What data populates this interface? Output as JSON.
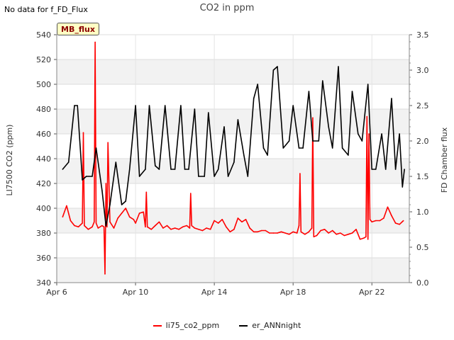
{
  "header": {
    "no_data": "No data for f_FD_Flux",
    "title": "CO2 in ppm"
  },
  "badge": {
    "label": "MB_flux"
  },
  "legend": [
    {
      "name": "li75_co2_ppm",
      "color": "#ff0000"
    },
    {
      "name": "er_ANNnight",
      "color": "#000000"
    }
  ],
  "chart_data": {
    "type": "line",
    "title": "CO2 in ppm",
    "xlabel": "",
    "ylabel": "LI7500 CO2 (ppm)",
    "y2label": "FD Chamber flux",
    "xlim": [
      6.0,
      23.9
    ],
    "ylim": [
      340,
      540
    ],
    "y2lim": [
      0.0,
      3.5
    ],
    "x_ticks": [
      {
        "value": 6,
        "label": "Apr 6"
      },
      {
        "value": 10,
        "label": "Apr 10"
      },
      {
        "value": 14,
        "label": "Apr 14"
      },
      {
        "value": 18,
        "label": "Apr 18"
      },
      {
        "value": 22,
        "label": "Apr 22"
      }
    ],
    "y_ticks": [
      340,
      360,
      380,
      400,
      420,
      440,
      460,
      480,
      500,
      520,
      540
    ],
    "y2_ticks": [
      "0.0",
      "0.5",
      "1.0",
      "1.5",
      "2.0",
      "2.5",
      "3.0",
      "3.5"
    ],
    "grid": true,
    "legend_position": "bottom",
    "series": [
      {
        "name": "li75_co2_ppm",
        "axis": "left",
        "color": "#ff0000",
        "x": [
          6.3,
          6.5,
          6.7,
          6.9,
          7.1,
          7.3,
          7.35,
          7.4,
          7.6,
          7.8,
          7.9,
          7.95,
          8.0,
          8.1,
          8.3,
          8.4,
          8.45,
          8.5,
          8.55,
          8.6,
          8.7,
          8.9,
          9.1,
          9.3,
          9.5,
          9.7,
          9.9,
          10.0,
          10.2,
          10.4,
          10.5,
          10.55,
          10.6,
          10.8,
          11.0,
          11.2,
          11.4,
          11.6,
          11.8,
          12.0,
          12.2,
          12.4,
          12.6,
          12.75,
          12.8,
          12.85,
          13.0,
          13.2,
          13.4,
          13.6,
          13.8,
          14.0,
          14.2,
          14.4,
          14.6,
          14.8,
          15.0,
          15.2,
          15.4,
          15.6,
          15.8,
          16.0,
          16.2,
          16.4,
          16.6,
          16.8,
          17.0,
          17.2,
          17.4,
          17.6,
          17.8,
          18.0,
          18.2,
          18.3,
          18.35,
          18.4,
          18.6,
          18.8,
          18.95,
          19.0,
          19.05,
          19.2,
          19.4,
          19.6,
          19.8,
          20.0,
          20.2,
          20.4,
          20.6,
          20.8,
          21.0,
          21.2,
          21.4,
          21.6,
          21.7,
          21.75,
          21.8,
          21.85,
          21.9,
          22.0,
          22.2,
          22.4,
          22.6,
          22.8,
          23.0,
          23.2,
          23.4,
          23.6
        ],
        "values": [
          393,
          402,
          390,
          386,
          385,
          388,
          461,
          386,
          383,
          385,
          389,
          534,
          388,
          384,
          386,
          385,
          347,
          420,
          385,
          453,
          389,
          384,
          392,
          396,
          400,
          393,
          391,
          388,
          396,
          397,
          385,
          413,
          385,
          383,
          386,
          389,
          384,
          386,
          383,
          384,
          383,
          385,
          386,
          384,
          412,
          386,
          384,
          383,
          382,
          384,
          383,
          390,
          388,
          391,
          385,
          381,
          383,
          392,
          389,
          391,
          384,
          381,
          381,
          382,
          382,
          380,
          380,
          380,
          381,
          380,
          379,
          381,
          380,
          386,
          428,
          381,
          379,
          381,
          384,
          473,
          377,
          378,
          382,
          383,
          380,
          382,
          379,
          380,
          378,
          379,
          380,
          383,
          375,
          376,
          377,
          474,
          375,
          460,
          391,
          389,
          390,
          390,
          392,
          401,
          394,
          388,
          387,
          390
        ]
      },
      {
        "name": "er_ANNnight",
        "axis": "right",
        "color": "#000000",
        "x": [
          6.3,
          6.6,
          6.9,
          7.05,
          7.3,
          7.5,
          7.8,
          8.0,
          8.3,
          8.5,
          8.7,
          9.0,
          9.3,
          9.5,
          9.7,
          10.0,
          10.2,
          10.5,
          10.7,
          11.0,
          11.2,
          11.5,
          11.8,
          12.0,
          12.3,
          12.5,
          12.7,
          13.0,
          13.2,
          13.5,
          13.7,
          14.0,
          14.2,
          14.5,
          14.7,
          15.0,
          15.2,
          15.5,
          15.7,
          16.0,
          16.2,
          16.5,
          16.7,
          17.0,
          17.2,
          17.5,
          17.8,
          18.0,
          18.3,
          18.5,
          18.8,
          19.0,
          19.3,
          19.5,
          19.8,
          20.0,
          20.3,
          20.5,
          20.8,
          21.0,
          21.3,
          21.5,
          21.8,
          22.0,
          22.2,
          22.5,
          22.7,
          23.0,
          23.2,
          23.4,
          23.55,
          23.65
        ],
        "values": [
          1.6,
          1.7,
          2.5,
          2.5,
          1.45,
          1.5,
          1.5,
          1.9,
          1.3,
          0.8,
          1.1,
          1.7,
          1.1,
          1.15,
          1.6,
          2.5,
          1.5,
          1.6,
          2.5,
          1.65,
          1.6,
          2.5,
          1.6,
          1.6,
          2.5,
          1.6,
          1.6,
          2.45,
          1.5,
          1.5,
          2.4,
          1.5,
          1.6,
          2.2,
          1.5,
          1.7,
          2.3,
          1.8,
          1.5,
          2.6,
          2.8,
          1.9,
          1.8,
          3.0,
          3.05,
          1.9,
          2.0,
          2.5,
          1.9,
          1.9,
          2.7,
          2.0,
          2.0,
          2.85,
          2.2,
          1.9,
          3.05,
          1.9,
          1.8,
          2.7,
          2.1,
          2.0,
          2.8,
          1.6,
          1.6,
          2.1,
          1.6,
          2.6,
          1.6,
          2.1,
          1.35,
          1.6
        ]
      }
    ]
  }
}
